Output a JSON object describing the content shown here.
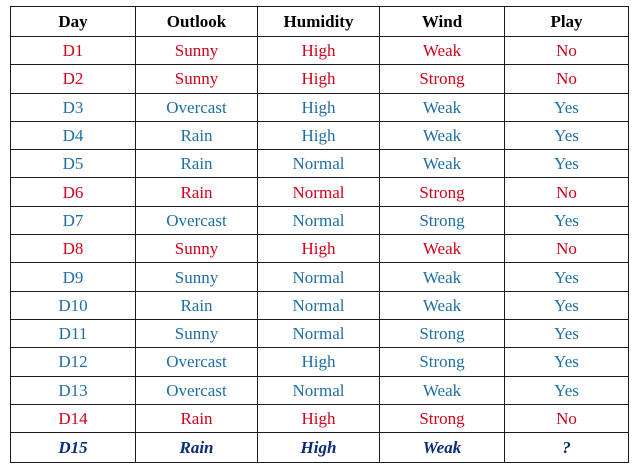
{
  "table": {
    "headers": [
      "Day",
      "Outlook",
      "Humidity",
      "Wind",
      "Play"
    ],
    "rows": [
      {
        "cells": [
          "D1",
          "Sunny",
          "High",
          "Weak",
          "No"
        ],
        "colors": [
          "red",
          "red",
          "red",
          "red",
          "red"
        ]
      },
      {
        "cells": [
          "D2",
          "Sunny",
          "High",
          "Strong",
          "No"
        ],
        "colors": [
          "red",
          "red",
          "red",
          "red",
          "red"
        ]
      },
      {
        "cells": [
          "D3",
          "Overcast",
          "High",
          "Weak",
          "Yes"
        ],
        "colors": [
          "blue",
          "blue",
          "blue",
          "blue",
          "blue"
        ]
      },
      {
        "cells": [
          "D4",
          "Rain",
          "High",
          "Weak",
          "Yes"
        ],
        "colors": [
          "blue",
          "blue",
          "blue",
          "blue",
          "blue"
        ]
      },
      {
        "cells": [
          "D5",
          "Rain",
          "Normal",
          "Weak",
          "Yes"
        ],
        "colors": [
          "blue",
          "blue",
          "blue",
          "blue",
          "blue"
        ]
      },
      {
        "cells": [
          "D6",
          "Rain",
          "Normal",
          "Strong",
          "No"
        ],
        "colors": [
          "red",
          "red",
          "red",
          "red",
          "red"
        ]
      },
      {
        "cells": [
          "D7",
          "Overcast",
          "Normal",
          "Strong",
          "Yes"
        ],
        "colors": [
          "blue",
          "blue",
          "blue",
          "blue",
          "blue"
        ]
      },
      {
        "cells": [
          "D8",
          "Sunny",
          "High",
          "Weak",
          "No"
        ],
        "colors": [
          "red",
          "red",
          "red",
          "red",
          "red"
        ]
      },
      {
        "cells": [
          "D9",
          "Sunny",
          "Normal",
          "Weak",
          "Yes"
        ],
        "colors": [
          "blue",
          "blue",
          "blue",
          "blue",
          "blue"
        ]
      },
      {
        "cells": [
          "D10",
          "Rain",
          "Normal",
          "Weak",
          "Yes"
        ],
        "colors": [
          "blue",
          "blue",
          "blue",
          "blue",
          "blue"
        ]
      },
      {
        "cells": [
          "D11",
          "Sunny",
          "Normal",
          "Strong",
          "Yes"
        ],
        "colors": [
          "blue",
          "blue",
          "blue",
          "blue",
          "blue"
        ]
      },
      {
        "cells": [
          "D12",
          "Overcast",
          "High",
          "Strong",
          "Yes"
        ],
        "colors": [
          "blue",
          "blue",
          "blue",
          "blue",
          "blue"
        ]
      },
      {
        "cells": [
          "D13",
          "Overcast",
          "Normal",
          "Weak",
          "Yes"
        ],
        "colors": [
          "blue",
          "blue",
          "blue",
          "blue",
          "blue"
        ]
      },
      {
        "cells": [
          "D14",
          "Rain",
          "High",
          "Strong",
          "No"
        ],
        "colors": [
          "red",
          "red",
          "red",
          "red",
          "red"
        ]
      }
    ],
    "query_row": [
      "D15",
      "Rain",
      "High",
      "Weak",
      "?"
    ]
  },
  "colors": {
    "red": "#d0021b",
    "blue": "#1f6ea3",
    "query": "#0b2a78",
    "border": "#1a1a1a"
  }
}
